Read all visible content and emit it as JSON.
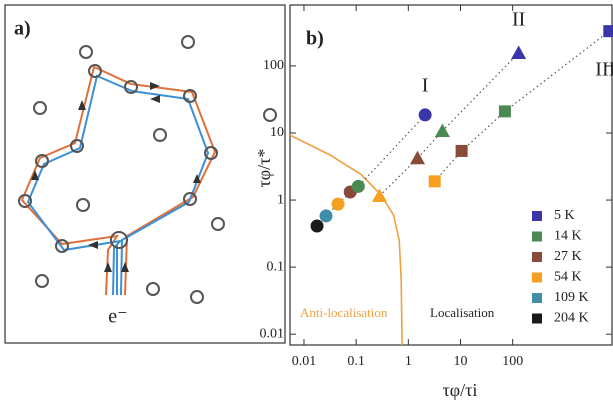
{
  "panel_a": {
    "label": "a)",
    "electron_label": "e⁻"
  },
  "chart_data": {
    "type": "scatter",
    "label": "b)",
    "xlabel": "τφ/τi",
    "ylabel": "τφ/τ*",
    "log_x": true,
    "log_y": true,
    "xlim": [
      0.0054,
      8000
    ],
    "ylim": [
      0.0069,
      810
    ],
    "xticks": [
      0.01,
      0.1,
      1,
      10,
      100
    ],
    "yticks": [
      0.01,
      0.1,
      1,
      10,
      100
    ],
    "legend": [
      {
        "name": "5 K",
        "color": "#3a35a8"
      },
      {
        "name": "14 K",
        "color": "#4a8a52"
      },
      {
        "name": "27 K",
        "color": "#8a4a3a"
      },
      {
        "name": "54 K",
        "color": "#f5a020"
      },
      {
        "name": "109 K",
        "color": "#3f8faa"
      },
      {
        "name": "204 K",
        "color": "#1a1a1a"
      }
    ],
    "series": [
      {
        "label": "I",
        "marker": "circle",
        "x": [
          0.0178,
          0.0265,
          0.045,
          0.077,
          0.11,
          2.1
        ],
        "values": [
          0.41,
          0.58,
          0.87,
          1.32,
          1.6,
          18.6
        ],
        "colors": [
          "#1a1a1a",
          "#3f8faa",
          "#f5a020",
          "#8a4a3a",
          "#4a8a52",
          "#3a35a8"
        ]
      },
      {
        "label": "II",
        "marker": "triangle",
        "x": [
          0.28,
          1.5,
          4.5,
          130
        ],
        "values": [
          1.15,
          4.2,
          10.7,
          156
        ],
        "colors": [
          "#f5a020",
          "#8a4a3a",
          "#4a8a52",
          "#3a35a8"
        ]
      },
      {
        "label": "III",
        "marker": "square",
        "x": [
          3.2,
          10.5,
          71,
          7100
        ],
        "values": [
          1.9,
          5.4,
          21,
          330
        ],
        "colors": [
          "#f5a020",
          "#8a4a3a",
          "#4a8a52",
          "#3a35a8"
        ]
      }
    ],
    "curve": {
      "color": "#f0a040",
      "x": [
        0.0054,
        0.0316,
        0.125,
        0.3,
        0.52,
        0.67,
        0.73,
        0.76
      ],
      "values": [
        9.3,
        4.7,
        2.4,
        1.19,
        0.6,
        0.25,
        0.064,
        0.0069
      ]
    },
    "annotations": [
      {
        "text": "Anti-localisation",
        "color": "#f0a040"
      },
      {
        "text": "Localisation",
        "color": "#222"
      }
    ]
  }
}
